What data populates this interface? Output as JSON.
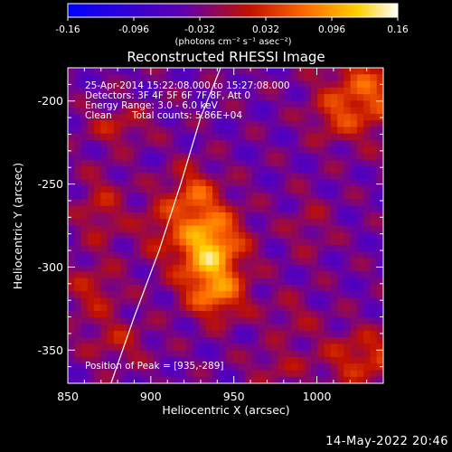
{
  "colorbar": {
    "ticks": [
      "-0.16",
      "-0.096",
      "-0.032",
      "0.032",
      "0.096",
      "0.16"
    ],
    "units_label": "(photons cm⁻² s⁻¹ asec⁻²)",
    "range": [
      -0.16,
      0.16
    ],
    "colormap": [
      "#0000ff",
      "#6000b0",
      "#c01000",
      "#ff6a00",
      "#ffd000",
      "#ffffff"
    ]
  },
  "annotations": {
    "time": "25-Apr-2014 15:22:08.000 to 15:27:08.000",
    "detectors": "Detectors: 3F 4F 5F 6F 7F 8F, Att 0",
    "energy": "Energy Range: 3.0 - 6.0 keV",
    "clean_prefix": "Clean",
    "total_counts": "Total counts: 5.86E+04",
    "peak": "Position of Peak = [935,-289]"
  },
  "footer": {
    "date": "14-May-2022 20:46"
  },
  "chart_data": {
    "type": "heatmap",
    "title": "Reconstructed RHESSI Image",
    "xlabel": "Heliocentric X (arcsec)",
    "ylabel": "Heliocentric Y (arcsec)",
    "xlim": [
      850,
      1040
    ],
    "ylim": [
      -370,
      -180
    ],
    "xticks": [
      850,
      900,
      950,
      1000
    ],
    "yticks": [
      -200,
      -250,
      -300,
      -350
    ],
    "peak": {
      "x": 935,
      "y": -289,
      "value": 0.16
    },
    "sources": [
      {
        "x": 935,
        "y": -289,
        "sx": 14,
        "sy": 18,
        "amp": 0.16
      },
      {
        "x": 925,
        "y": -255,
        "sx": 10,
        "sy": 12,
        "amp": 0.07
      },
      {
        "x": 940,
        "y": -318,
        "sx": 12,
        "sy": 10,
        "amp": 0.08
      },
      {
        "x": 905,
        "y": -275,
        "sx": 10,
        "sy": 14,
        "amp": 0.045
      },
      {
        "x": 1030,
        "y": -195,
        "sx": 18,
        "sy": 18,
        "amp": 0.09
      },
      {
        "x": 1010,
        "y": -210,
        "sx": 10,
        "sy": 10,
        "amp": 0.04
      },
      {
        "x": 880,
        "y": -215,
        "sx": 14,
        "sy": 8,
        "amp": 0.05
      },
      {
        "x": 870,
        "y": -265,
        "sx": 10,
        "sy": 16,
        "amp": 0.05
      },
      {
        "x": 865,
        "y": -315,
        "sx": 12,
        "sy": 12,
        "amp": 0.05
      },
      {
        "x": 880,
        "y": -345,
        "sx": 14,
        "sy": 10,
        "amp": 0.045
      },
      {
        "x": 1030,
        "y": -355,
        "sx": 20,
        "sy": 12,
        "amp": 0.07
      },
      {
        "x": 975,
        "y": -360,
        "sx": 12,
        "sy": 8,
        "amp": 0.035
      },
      {
        "x": 995,
        "y": -275,
        "sx": 10,
        "sy": 14,
        "amp": 0.03
      },
      {
        "x": 985,
        "y": -330,
        "sx": 12,
        "sy": 10,
        "amp": 0.03
      }
    ],
    "background": -0.04,
    "limb_curve": [
      [
        876,
        -370
      ],
      [
        890,
        -330
      ],
      [
        905,
        -290
      ],
      [
        918,
        -250
      ],
      [
        930,
        -210
      ],
      [
        942,
        -180
      ]
    ]
  }
}
